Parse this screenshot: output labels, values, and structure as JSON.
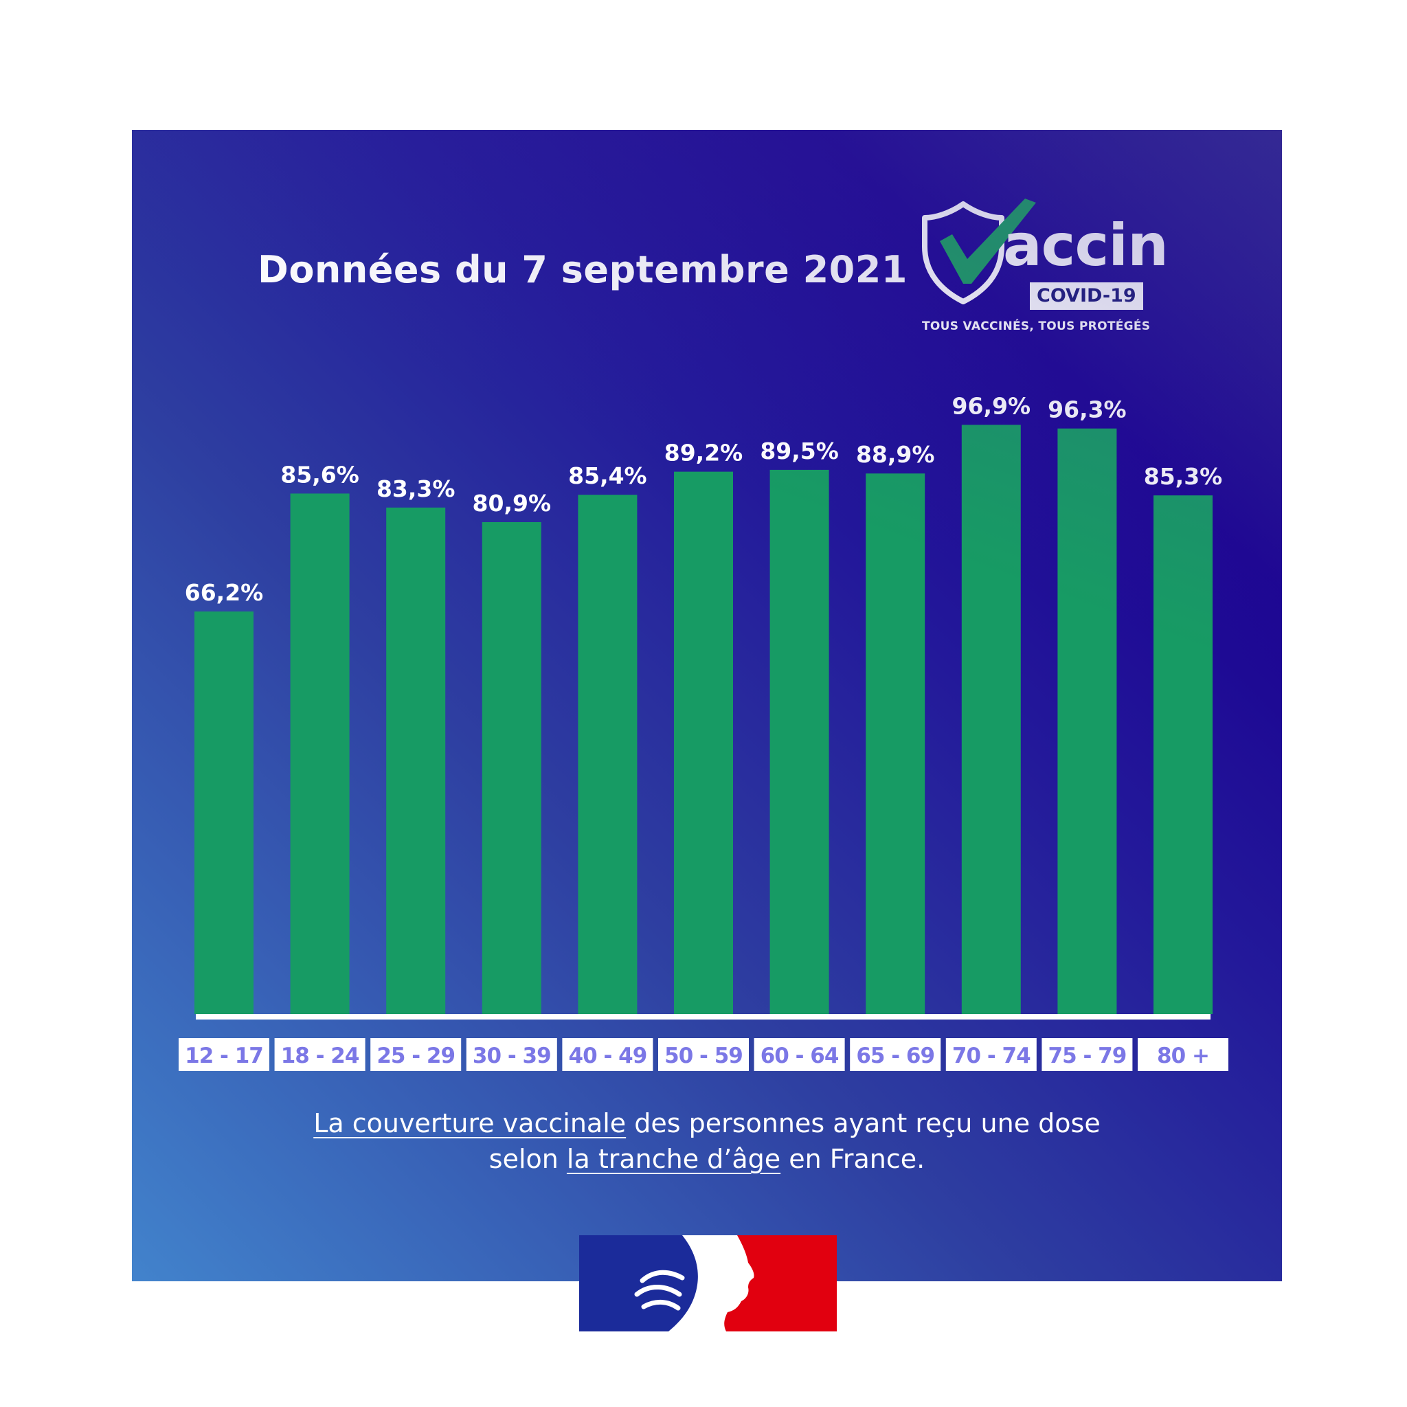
{
  "header": {
    "title": "Données du 7 septembre 2021"
  },
  "logo": {
    "wordmark": "accin",
    "badge": "COVID-19",
    "tagline": "TOUS VACCINÉS, TOUS PROTÉGÉS"
  },
  "caption": {
    "part1_underlined": "La couverture vaccinale",
    "part1_rest": " des personnes ayant reçu une dose",
    "part2_start": "selon ",
    "part2_underlined": "la tranche d’âge",
    "part2_end": " en France."
  },
  "colors": {
    "bar": "#179b64",
    "tick_label_text": "#7b77e6",
    "tick_label_bg": "#ffffff",
    "marianne_blue": "#1b2b9a",
    "marianne_red": "#e1000f"
  },
  "chart_data": {
    "type": "bar",
    "categories": [
      "12 - 17",
      "18 - 24",
      "25 - 29",
      "30 - 39",
      "40 - 49",
      "50 - 59",
      "60 - 64",
      "65 - 69",
      "70 - 74",
      "75 - 79",
      "80 +"
    ],
    "values": [
      66.2,
      85.6,
      83.3,
      80.9,
      85.4,
      89.2,
      89.5,
      88.9,
      96.9,
      96.3,
      85.3
    ],
    "data_labels": [
      "66,2%",
      "85,6%",
      "83,3%",
      "80,9%",
      "85,4%",
      "89,2%",
      "89,5%",
      "88,9%",
      "96,9%",
      "96,3%",
      "85,3%"
    ],
    "title": "Données du 7 septembre 2021",
    "xlabel": "",
    "ylabel": "",
    "ylim": [
      0,
      100
    ],
    "grid": false,
    "legend": "none"
  }
}
